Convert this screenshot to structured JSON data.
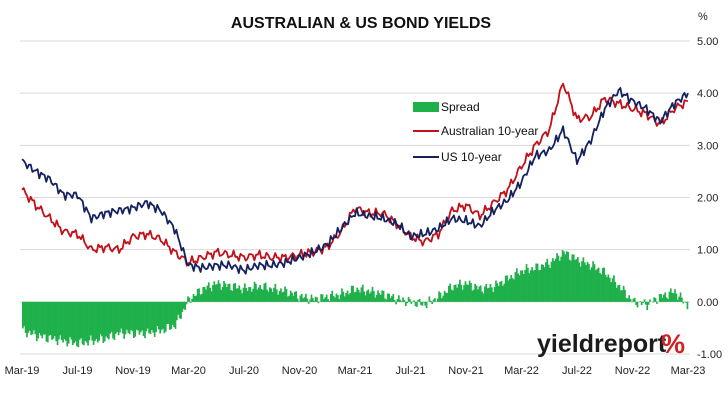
{
  "chart_data": {
    "type": "line",
    "title": "AUSTRALIAN & US BOND YIELDS",
    "ylabel": "%",
    "xlabel": "",
    "ylim": [
      -1.0,
      5.0
    ],
    "yticks": [
      "5.00",
      "4.00",
      "3.00",
      "2.00",
      "1.00",
      "0.00",
      "-1.00"
    ],
    "y_tick_values": [
      5,
      4,
      3,
      2,
      1,
      0,
      -1
    ],
    "xticks": [
      "Mar-19",
      "Jul-19",
      "Nov-19",
      "Mar-20",
      "Jul-20",
      "Nov-20",
      "Mar-21",
      "Jul-21",
      "Nov-21",
      "Mar-22",
      "Jul-22",
      "Nov-22",
      "Mar-23"
    ],
    "grid": true,
    "legend_position": "top-right",
    "series": [
      {
        "name": "Spread",
        "chart_type": "bar",
        "color": "#1fb04a",
        "x": [
          "Mar-19",
          "Apr-19",
          "May-19",
          "Jun-19",
          "Jul-19",
          "Aug-19",
          "Sep-19",
          "Oct-19",
          "Nov-19",
          "Dec-19",
          "Jan-20",
          "Feb-20",
          "Mar-20",
          "Apr-20",
          "May-20",
          "Jun-20",
          "Jul-20",
          "Aug-20",
          "Sep-20",
          "Oct-20",
          "Nov-20",
          "Dec-20",
          "Jan-21",
          "Feb-21",
          "Mar-21",
          "Apr-21",
          "May-21",
          "Jun-21",
          "Jul-21",
          "Aug-21",
          "Sep-21",
          "Oct-21",
          "Nov-21",
          "Dec-21",
          "Jan-22",
          "Feb-22",
          "Mar-22",
          "Apr-22",
          "May-22",
          "Jun-22",
          "Jul-22",
          "Aug-22",
          "Sep-22",
          "Oct-22",
          "Nov-22",
          "Dec-22",
          "Jan-23",
          "Feb-23",
          "Mar-23"
        ],
        "values": [
          -0.55,
          -0.65,
          -0.7,
          -0.75,
          -0.8,
          -0.75,
          -0.7,
          -0.6,
          -0.6,
          -0.6,
          -0.55,
          -0.45,
          0.05,
          0.25,
          0.35,
          0.3,
          0.25,
          0.3,
          0.25,
          0.2,
          0.1,
          0.05,
          0.1,
          0.15,
          0.25,
          0.2,
          0.15,
          0.05,
          0.0,
          -0.05,
          0.1,
          0.3,
          0.35,
          0.25,
          0.3,
          0.45,
          0.6,
          0.65,
          0.75,
          0.95,
          0.8,
          0.7,
          0.55,
          0.3,
          0.0,
          -0.05,
          0.1,
          0.2,
          -0.1
        ]
      },
      {
        "name": "Australian 10-year",
        "chart_type": "line",
        "color": "#c0111a",
        "x": [
          "Mar-19",
          "Apr-19",
          "May-19",
          "Jun-19",
          "Jul-19",
          "Aug-19",
          "Sep-19",
          "Oct-19",
          "Nov-19",
          "Dec-19",
          "Jan-20",
          "Feb-20",
          "Mar-20",
          "Apr-20",
          "May-20",
          "Jun-20",
          "Jul-20",
          "Aug-20",
          "Sep-20",
          "Oct-20",
          "Nov-20",
          "Dec-20",
          "Jan-21",
          "Feb-21",
          "Mar-21",
          "Apr-21",
          "May-21",
          "Jun-21",
          "Jul-21",
          "Aug-21",
          "Sep-21",
          "Oct-21",
          "Nov-21",
          "Dec-21",
          "Jan-22",
          "Feb-22",
          "Mar-22",
          "Apr-22",
          "May-22",
          "Jun-22",
          "Jul-22",
          "Aug-22",
          "Sep-22",
          "Oct-22",
          "Nov-22",
          "Dec-22",
          "Jan-23",
          "Feb-23",
          "Mar-23"
        ],
        "values": [
          2.15,
          1.85,
          1.6,
          1.35,
          1.3,
          1.0,
          1.05,
          1.0,
          1.25,
          1.3,
          1.2,
          0.95,
          0.75,
          0.85,
          0.95,
          0.9,
          0.85,
          0.9,
          0.85,
          0.85,
          0.9,
          0.95,
          1.05,
          1.35,
          1.8,
          1.7,
          1.7,
          1.5,
          1.25,
          1.15,
          1.3,
          1.75,
          1.85,
          1.65,
          1.9,
          2.15,
          2.6,
          3.0,
          3.3,
          4.2,
          3.5,
          3.55,
          3.9,
          3.8,
          3.7,
          3.6,
          3.4,
          3.7,
          3.85
        ]
      },
      {
        "name": "US 10-year",
        "chart_type": "line",
        "color": "#14215e",
        "x": [
          "Mar-19",
          "Apr-19",
          "May-19",
          "Jun-19",
          "Jul-19",
          "Aug-19",
          "Sep-19",
          "Oct-19",
          "Nov-19",
          "Dec-19",
          "Jan-20",
          "Feb-20",
          "Mar-20",
          "Apr-20",
          "May-20",
          "Jun-20",
          "Jul-20",
          "Aug-20",
          "Sep-20",
          "Oct-20",
          "Nov-20",
          "Dec-20",
          "Jan-21",
          "Feb-21",
          "Mar-21",
          "Apr-21",
          "May-21",
          "Jun-21",
          "Jul-21",
          "Aug-21",
          "Sep-21",
          "Oct-21",
          "Nov-21",
          "Dec-21",
          "Jan-22",
          "Feb-22",
          "Mar-22",
          "Apr-22",
          "May-22",
          "Jun-22",
          "Jul-22",
          "Aug-22",
          "Sep-22",
          "Oct-22",
          "Nov-22",
          "Dec-22",
          "Jan-23",
          "Feb-23",
          "Mar-23"
        ],
        "values": [
          2.7,
          2.5,
          2.35,
          2.05,
          2.05,
          1.6,
          1.7,
          1.75,
          1.8,
          1.9,
          1.75,
          1.4,
          0.7,
          0.65,
          0.7,
          0.7,
          0.6,
          0.7,
          0.7,
          0.75,
          0.85,
          0.95,
          1.1,
          1.4,
          1.7,
          1.65,
          1.6,
          1.5,
          1.25,
          1.3,
          1.4,
          1.6,
          1.55,
          1.45,
          1.75,
          1.95,
          2.3,
          2.8,
          2.9,
          3.3,
          2.7,
          3.1,
          3.7,
          4.05,
          3.85,
          3.7,
          3.45,
          3.8,
          4.0
        ]
      }
    ]
  },
  "logo": {
    "word": "yieldreport",
    "symbol": "%",
    "word_color": "#1b1b1b",
    "symbol_color": "#d42020"
  }
}
